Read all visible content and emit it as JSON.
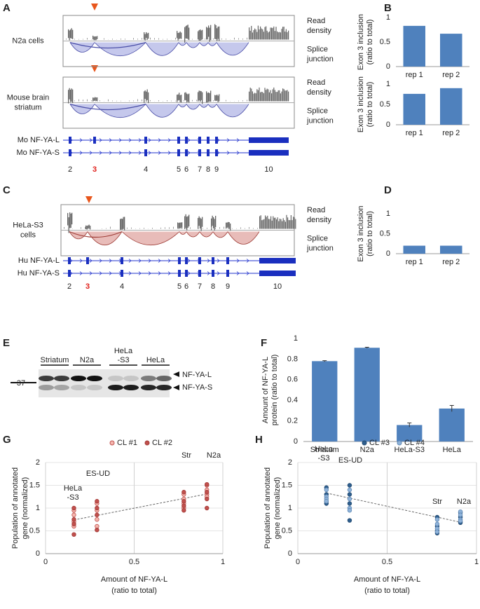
{
  "letters": [
    "A",
    "B",
    "C",
    "D",
    "E",
    "F",
    "G",
    "H"
  ],
  "panel_a": {
    "tracks": [
      [
        "N2a cells"
      ],
      [
        "Mouse brain",
        "striatum"
      ]
    ],
    "read_label": [
      "Read",
      "density"
    ],
    "splice_label": [
      "Splice",
      "junction"
    ],
    "genes": [
      "Mo NF-YA-L",
      "Mo NF-YA-S"
    ],
    "exons": [
      "2",
      "3",
      "4",
      "5",
      "6",
      "7",
      "8",
      "9",
      "10"
    ]
  },
  "panel_c": {
    "tracks": [
      [
        "HeLa-S3",
        "cells"
      ]
    ],
    "read_label": [
      "Read",
      "density"
    ],
    "splice_label": [
      "Splice",
      "junction"
    ],
    "genes": [
      "Hu NF-YA-L",
      "Hu NF-YA-S"
    ],
    "exons": [
      "2",
      "3",
      "4",
      "5",
      "6",
      "7",
      "8",
      "9",
      "10"
    ]
  },
  "panel_e": {
    "lanes": [
      [
        "Striatum"
      ],
      [
        "N2a"
      ],
      [
        "HeLa",
        "-S3"
      ],
      [
        "HeLa"
      ]
    ],
    "marker": "37",
    "bands": [
      "NF-YA-L",
      "NF-YA-S"
    ]
  },
  "chart_data": [
    {
      "type": "bar",
      "y_label": [
        "Exon 3 inclusion",
        "(ratio to total)"
      ],
      "categories": [
        "rep 1",
        "rep 2"
      ],
      "values": [
        0.83,
        0.67
      ],
      "color": "#4f81bd",
      "ylim": [
        0,
        1
      ],
      "yticks": [
        0,
        0.5,
        1
      ]
    },
    {
      "type": "bar",
      "y_label": [
        "Exon 3 inclusion",
        "(ratio to total)"
      ],
      "categories": [
        "rep 1",
        "rep 2"
      ],
      "values": [
        0.76,
        0.9
      ],
      "color": "#4f81bd",
      "ylim": [
        0,
        1
      ],
      "yticks": [
        0,
        0.5,
        1
      ]
    },
    {
      "type": "bar",
      "y_label": [
        "Exon 3 inclusion",
        "(ratio to total)"
      ],
      "categories": [
        "rep 1",
        "rep 2"
      ],
      "values": [
        0.2,
        0.2
      ],
      "color": "#4f81bd",
      "ylim": [
        0,
        1
      ],
      "yticks": [
        0,
        0.5,
        1
      ]
    },
    {
      "type": "bar",
      "y_label": [
        "Amount of NF-YA-L",
        "protein (ratio to total)"
      ],
      "categories": [
        "Striatum",
        "N2a",
        "HeLa-S3",
        "HeLa"
      ],
      "values": [
        0.78,
        0.91,
        0.16,
        0.32
      ],
      "errors": [
        0.005,
        0.005,
        0.02,
        0.03
      ],
      "color": "#4f81bd",
      "ylim": [
        0,
        1
      ],
      "yticks": [
        0,
        0.2,
        0.4,
        0.6,
        0.8,
        1
      ]
    },
    {
      "type": "scatter",
      "x_label": [
        "Amount of NF-YA-L",
        "(ratio to total)"
      ],
      "y_label": [
        "Population of annotated",
        "gene (normalized)"
      ],
      "series": [
        {
          "name": "CL #1",
          "color": "#f4b6ae",
          "edgecolor": "#c0504d",
          "x": [
            0.16,
            0.16,
            0.16,
            0.16,
            0.29,
            0.29,
            0.29,
            0.29,
            0.78,
            0.78,
            0.78,
            0.78,
            0.91,
            0.91,
            0.91,
            0.91
          ],
          "values": [
            0.95,
            0.85,
            0.7,
            0.6,
            1.1,
            0.95,
            0.75,
            0.6,
            1.3,
            1.2,
            1.1,
            1.0,
            1.5,
            1.4,
            1.3,
            1.25
          ]
        },
        {
          "name": "CL #2",
          "color": "#c0504d",
          "edgecolor": "#a33a37",
          "x": [
            0.16,
            0.16,
            0.16,
            0.16,
            0.29,
            0.29,
            0.29,
            0.29,
            0.78,
            0.78,
            0.78,
            0.78,
            0.91,
            0.91,
            0.91,
            0.91
          ],
          "values": [
            1.0,
            0.75,
            0.65,
            0.42,
            1.15,
            1.0,
            0.85,
            0.52,
            1.35,
            1.15,
            1.05,
            0.95,
            1.52,
            1.35,
            1.2,
            1.0
          ]
        }
      ],
      "trend": {
        "x": [
          0.16,
          0.91
        ],
        "values": [
          0.74,
          1.31
        ]
      },
      "annotations": [
        [
          "HeLa",
          "-S3"
        ],
        [
          "ES-UD"
        ],
        [
          "Str"
        ],
        [
          "N2a"
        ]
      ],
      "xlim": [
        0,
        1
      ],
      "xticks": [
        0,
        0.5,
        1
      ],
      "ylim": [
        0,
        2
      ],
      "yticks": [
        0,
        0.5,
        1,
        1.5,
        2
      ],
      "grid": true
    },
    {
      "type": "scatter",
      "x_label": [
        "Amount of NF-YA-L",
        "(ratio to total)"
      ],
      "y_label": [
        "Population of annotated",
        "gene (normalized)"
      ],
      "series": [
        {
          "name": "CL #3",
          "color": "#2e5f8f",
          "edgecolor": "#234a70",
          "x": [
            0.16,
            0.16,
            0.16,
            0.16,
            0.29,
            0.29,
            0.29,
            0.29,
            0.78,
            0.78,
            0.78,
            0.78,
            0.91,
            0.91,
            0.91,
            0.91
          ],
          "values": [
            1.45,
            1.3,
            1.15,
            1.1,
            1.5,
            1.3,
            1.1,
            0.73,
            0.8,
            0.6,
            0.5,
            0.45,
            0.9,
            0.8,
            0.7,
            0.68
          ]
        },
        {
          "name": "CL #4",
          "color": "#8fb3d9",
          "edgecolor": "#5f88b5",
          "x": [
            0.16,
            0.16,
            0.16,
            0.16,
            0.29,
            0.29,
            0.29,
            0.29,
            0.78,
            0.78,
            0.78,
            0.78,
            0.91,
            0.91,
            0.91,
            0.91
          ],
          "values": [
            1.4,
            1.25,
            1.2,
            1.15,
            1.4,
            1.2,
            1.0,
            0.95,
            0.75,
            0.65,
            0.55,
            0.48,
            0.92,
            0.85,
            0.75,
            0.72
          ]
        }
      ],
      "trend": {
        "x": [
          0.16,
          0.91
        ],
        "values": [
          1.33,
          0.69
        ]
      },
      "annotations": [
        [
          "HeLa",
          "-S3"
        ],
        [
          "ES-UD"
        ],
        [
          "Str"
        ],
        [
          "N2a"
        ]
      ],
      "xlim": [
        0,
        1
      ],
      "xticks": [
        0,
        0.5,
        1
      ],
      "ylim": [
        0,
        2
      ],
      "yticks": [
        0,
        0.5,
        1,
        1.5,
        2
      ],
      "grid": true
    }
  ]
}
